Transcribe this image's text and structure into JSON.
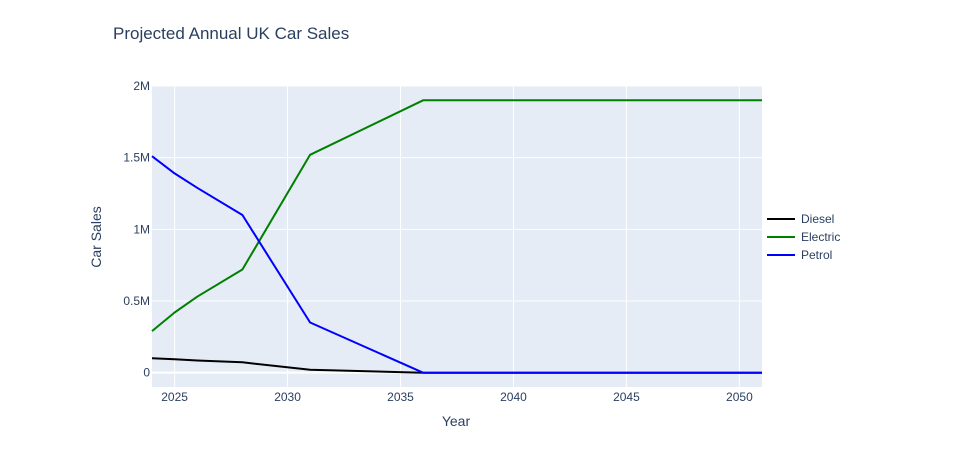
{
  "chart_data": {
    "type": "line",
    "title": "Projected Annual UK Car Sales",
    "xlabel": "Year",
    "ylabel": "Car Sales",
    "xlim": [
      2024,
      2051
    ],
    "ylim": [
      -100000,
      2000000
    ],
    "x_ticks": [
      2025,
      2030,
      2035,
      2040,
      2045,
      2050
    ],
    "y_ticks": [
      {
        "value": 0,
        "label": "0"
      },
      {
        "value": 500000,
        "label": "0.5M"
      },
      {
        "value": 1000000,
        "label": "1M"
      },
      {
        "value": 1500000,
        "label": "1.5M"
      },
      {
        "value": 2000000,
        "label": "2M"
      }
    ],
    "grid": true,
    "legend_position": "right",
    "background": "#e5ecf6",
    "series": [
      {
        "name": "Diesel",
        "color": "#000000",
        "x": [
          2024,
          2025,
          2026,
          2028,
          2031,
          2036,
          2037,
          2051
        ],
        "y": [
          100000,
          93000,
          85000,
          72000,
          20000,
          0,
          0,
          0
        ]
      },
      {
        "name": "Electric",
        "color": "#008000",
        "x": [
          2024,
          2025,
          2026,
          2028,
          2031,
          2036,
          2037,
          2051
        ],
        "y": [
          290000,
          420000,
          530000,
          720000,
          1520000,
          1900000,
          1900000,
          1900000
        ]
      },
      {
        "name": "Petrol",
        "color": "#0000ff",
        "x": [
          2024,
          2025,
          2026,
          2028,
          2031,
          2036,
          2037,
          2051
        ],
        "y": [
          1510000,
          1390000,
          1290000,
          1100000,
          350000,
          0,
          0,
          0
        ]
      }
    ]
  }
}
